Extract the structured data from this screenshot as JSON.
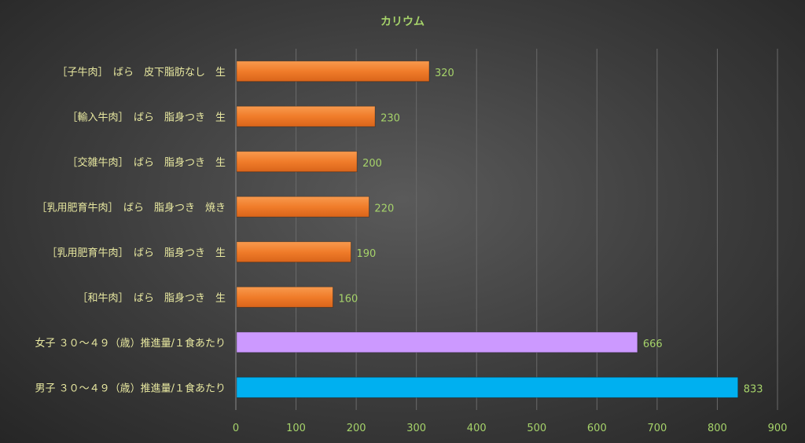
{
  "chart_data": {
    "type": "bar",
    "orientation": "horizontal",
    "title": "カリウム",
    "xlabel": "",
    "ylabel": "",
    "xlim": [
      0,
      900
    ],
    "ticks": [
      0,
      100,
      200,
      300,
      400,
      500,
      600,
      700,
      800,
      900
    ],
    "grid": true,
    "categories": [
      "［子牛肉］　ばら　皮下脂肪なし　生",
      "［輸入牛肉］　ばら　脂身つき　生",
      "［交雑牛肉］　ばら　脂身つき　生",
      "［乳用肥育牛肉］　ばら　脂身つき　焼き",
      "［乳用肥育牛肉］　ばら　脂身つき　生",
      "［和牛肉］　ばら　脂身つき　生",
      "女子 ３０～４９（歳）推進量/１食あたり",
      "男子 ３０～４９（歳）推進量/１食あたり"
    ],
    "values": [
      320,
      230,
      200,
      220,
      190,
      160,
      666,
      833
    ],
    "bar_colors": [
      "#f07c2a",
      "#f07c2a",
      "#f07c2a",
      "#f07c2a",
      "#f07c2a",
      "#f07c2a",
      "#cc99ff",
      "#00b0f0"
    ]
  }
}
